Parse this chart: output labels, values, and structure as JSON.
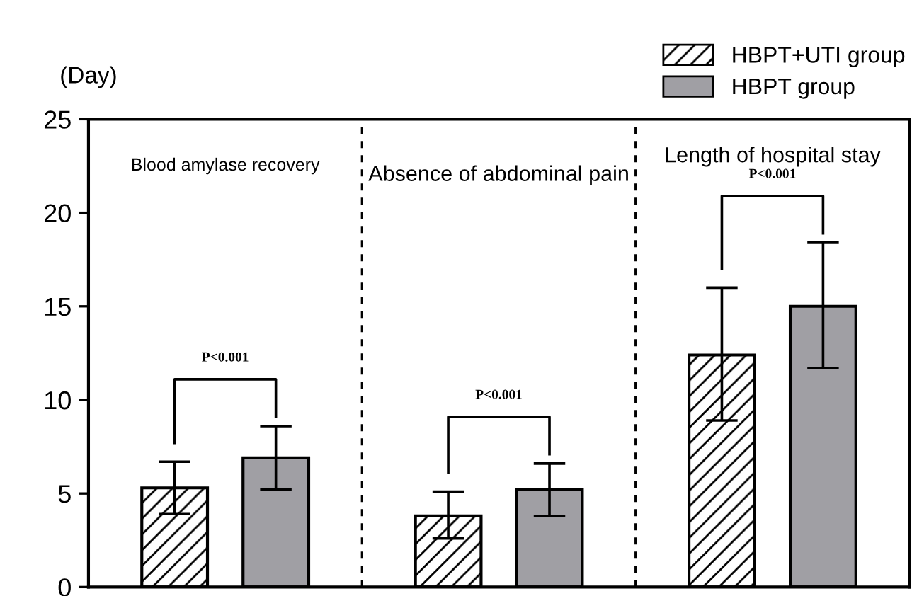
{
  "chart_data": {
    "type": "bar",
    "ylabel": "(Day)",
    "categories": [
      "Blood amylase recovery",
      "Absence of abdominal pain",
      "Length of hospital stay"
    ],
    "series": [
      {
        "name": "HBPT+UTI group",
        "color": "#000000",
        "values": [
          5.3,
          3.8,
          12.4
        ],
        "errors": [
          [
            3.9,
            6.7
          ],
          [
            2.6,
            5.1
          ],
          [
            8.9,
            16.0
          ]
        ]
      },
      {
        "name": "HBPT group",
        "color": "#a09fa4",
        "values": [
          6.9,
          5.2,
          15.0
        ],
        "errors": [
          [
            5.2,
            8.6
          ],
          [
            3.8,
            6.6
          ],
          [
            11.7,
            18.4
          ]
        ]
      }
    ],
    "ylim": [
      0,
      25
    ],
    "yticks": [
      0,
      5,
      10,
      15,
      20,
      25
    ],
    "grid": false,
    "legend": "top right",
    "annotations": [
      "P<0.001",
      "P<0.001",
      "P<0.001"
    ]
  }
}
